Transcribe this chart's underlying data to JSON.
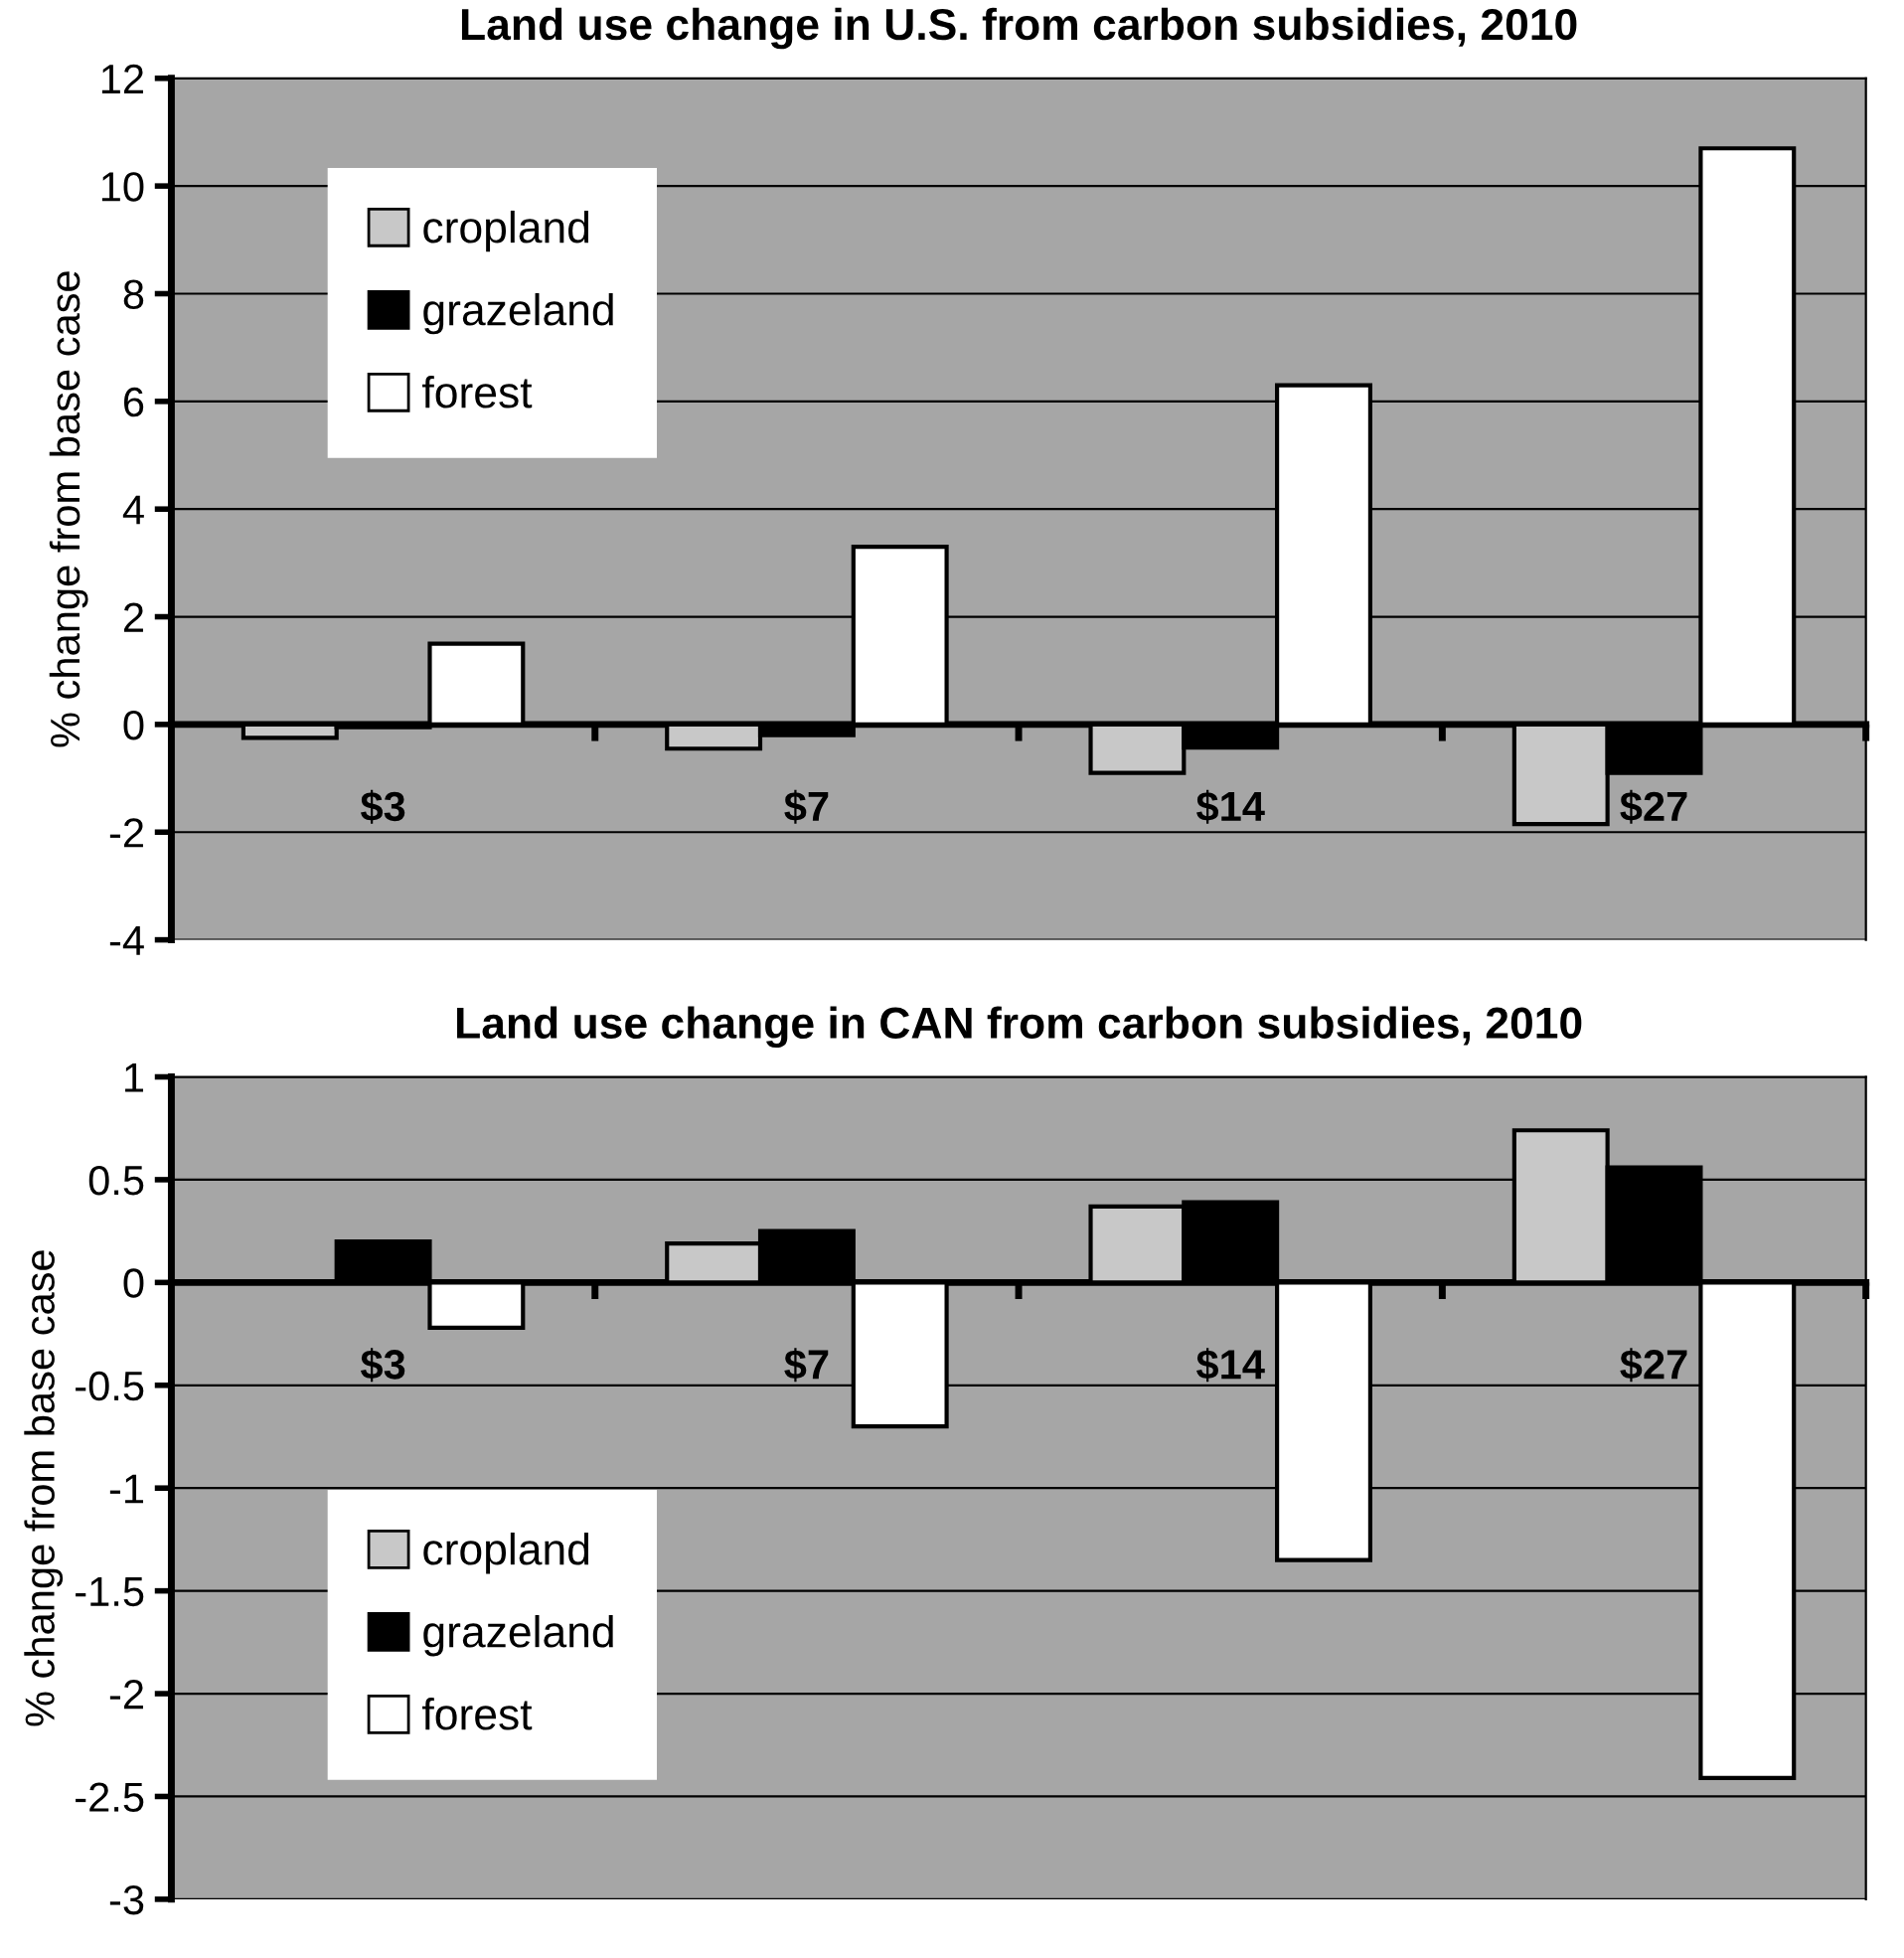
{
  "chart_data": [
    {
      "type": "bar",
      "title": "Land use change in U.S. from carbon subsidies, 2010",
      "ylabel": "% change from base case",
      "categories": [
        "$3",
        "$7",
        "$14",
        "$27"
      ],
      "series": [
        {
          "name": "cropland",
          "color": "#c8c8c8",
          "values": [
            -0.25,
            -0.45,
            -0.9,
            -1.85
          ]
        },
        {
          "name": "grazeland",
          "color": "#000000",
          "values": [
            -0.05,
            -0.2,
            -0.43,
            -0.9
          ]
        },
        {
          "name": "forest",
          "color": "#ffffff",
          "values": [
            1.5,
            3.3,
            6.3,
            10.7
          ]
        }
      ],
      "ylim": [
        -4,
        12
      ],
      "yticks": [
        -4,
        -2,
        0,
        2,
        4,
        6,
        8,
        10,
        12
      ],
      "grid": "y",
      "legend": "top left"
    },
    {
      "type": "bar",
      "title": "Land use change in CAN from carbon subsidies, 2010",
      "ylabel": "% change from base case",
      "categories": [
        "$3",
        "$7",
        "$14",
        "$27"
      ],
      "series": [
        {
          "name": "cropland",
          "color": "#c8c8c8",
          "values": [
            null,
            0.19,
            0.37,
            0.74
          ]
        },
        {
          "name": "grazeland",
          "color": "#000000",
          "values": [
            0.2,
            0.25,
            0.39,
            0.56
          ]
        },
        {
          "name": "forest",
          "color": "#ffffff",
          "values": [
            -0.22,
            -0.7,
            -1.35,
            -2.41
          ]
        }
      ],
      "ylim": [
        -3,
        1
      ],
      "yticks": [
        -3,
        -2.5,
        -2,
        -1.5,
        -1,
        -0.5,
        0,
        0.5,
        1
      ],
      "grid": "y",
      "legend": "bottom left"
    }
  ]
}
